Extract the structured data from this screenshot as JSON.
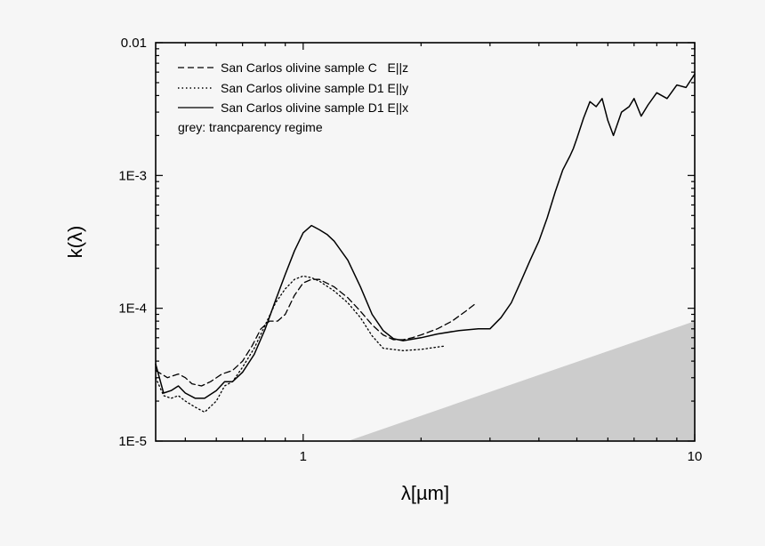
{
  "chart_data": {
    "type": "line",
    "xlabel": "λ[µm]",
    "ylabel": "k(λ)",
    "xscale": "log",
    "yscale": "log",
    "xlim": [
      0.42,
      10
    ],
    "ylim": [
      1e-05,
      0.01
    ],
    "x_ticks": [
      {
        "value": 1,
        "label": "1"
      },
      {
        "value": 10,
        "label": "10"
      }
    ],
    "y_ticks": [
      {
        "value": 1e-05,
        "label": "1E-5"
      },
      {
        "value": 0.0001,
        "label": "1E-4"
      },
      {
        "value": 0.001,
        "label": "1E-3"
      },
      {
        "value": 0.01,
        "label": "0.01"
      }
    ],
    "legend_position": "top-left",
    "series": [
      {
        "name": "San Carlos olivine sample C   E||z",
        "style": "dashed",
        "x": [
          0.42,
          0.45,
          0.48,
          0.5,
          0.52,
          0.55,
          0.58,
          0.62,
          0.66,
          0.7,
          0.74,
          0.78,
          0.82,
          0.86,
          0.9,
          0.95,
          1.0,
          1.05,
          1.1,
          1.2,
          1.3,
          1.4,
          1.5,
          1.6,
          1.7,
          1.8,
          1.9,
          2.0,
          2.2,
          2.4,
          2.6,
          2.75
        ],
        "y": [
          3.4e-05,
          3e-05,
          3.2e-05,
          3e-05,
          2.7e-05,
          2.6e-05,
          2.8e-05,
          3.2e-05,
          3.4e-05,
          4e-05,
          5.2e-05,
          7e-05,
          8e-05,
          8e-05,
          9e-05,
          0.000125,
          0.000155,
          0.000165,
          0.000165,
          0.000145,
          0.00012,
          9.5e-05,
          7.5e-05,
          6.3e-05,
          5.8e-05,
          5.8e-05,
          6e-05,
          6.3e-05,
          7e-05,
          8e-05,
          9.5e-05,
          0.000108
        ]
      },
      {
        "name": "San Carlos olivine sample D1 E||y",
        "style": "dotted",
        "x": [
          0.42,
          0.44,
          0.46,
          0.48,
          0.5,
          0.53,
          0.56,
          0.6,
          0.63,
          0.66,
          0.7,
          0.75,
          0.8,
          0.85,
          0.9,
          0.95,
          1.0,
          1.05,
          1.1,
          1.2,
          1.3,
          1.4,
          1.5,
          1.6,
          1.8,
          2.0,
          2.2,
          2.3
        ],
        "y": [
          3e-05,
          2.2e-05,
          2.1e-05,
          2.2e-05,
          2e-05,
          1.8e-05,
          1.65e-05,
          2e-05,
          2.6e-05,
          2.8e-05,
          3.6e-05,
          5e-05,
          7.5e-05,
          0.00011,
          0.00014,
          0.000165,
          0.000175,
          0.00017,
          0.00016,
          0.000135,
          0.00011,
          8.5e-05,
          6.2e-05,
          5e-05,
          4.8e-05,
          4.9e-05,
          5.1e-05,
          5.2e-05
        ]
      },
      {
        "name": "San Carlos olivine sample D1 E||x",
        "style": "solid",
        "x": [
          0.42,
          0.44,
          0.46,
          0.48,
          0.5,
          0.53,
          0.56,
          0.6,
          0.63,
          0.66,
          0.7,
          0.75,
          0.8,
          0.85,
          0.9,
          0.95,
          1.0,
          1.05,
          1.1,
          1.15,
          1.2,
          1.3,
          1.4,
          1.5,
          1.6,
          1.7,
          1.8,
          2.0,
          2.2,
          2.5,
          2.8,
          3.0,
          3.2,
          3.4,
          3.6,
          3.8,
          4.0,
          4.2,
          4.4,
          4.6,
          4.8,
          4.9,
          5.0,
          5.2,
          5.4,
          5.6,
          5.8,
          6.0,
          6.2,
          6.5,
          6.8,
          7.0,
          7.3,
          7.6,
          8.0,
          8.5,
          9.0,
          9.5,
          10.0
        ],
        "y": [
          3.8e-05,
          2.3e-05,
          2.4e-05,
          2.6e-05,
          2.3e-05,
          2.1e-05,
          2.1e-05,
          2.4e-05,
          2.8e-05,
          2.8e-05,
          3.3e-05,
          4.5e-05,
          7e-05,
          0.000115,
          0.00018,
          0.00027,
          0.00037,
          0.00042,
          0.00039,
          0.00036,
          0.00032,
          0.00023,
          0.000145,
          9e-05,
          6.8e-05,
          5.9e-05,
          5.7e-05,
          6e-05,
          6.4e-05,
          6.8e-05,
          7e-05,
          7e-05,
          8.5e-05,
          0.00011,
          0.00016,
          0.00023,
          0.00032,
          0.00048,
          0.00075,
          0.0011,
          0.0014,
          0.0016,
          0.0019,
          0.0027,
          0.0036,
          0.0033,
          0.0038,
          0.0026,
          0.002,
          0.003,
          0.0033,
          0.0038,
          0.0028,
          0.0034,
          0.0042,
          0.0038,
          0.0048,
          0.0046,
          0.0058
        ]
      }
    ],
    "annotation": "grey: trancparency regime",
    "shaded_region": {
      "color": "#cccccc",
      "x": [
        1.3,
        10.0
      ],
      "y": [
        1e-05,
        8e-05
      ]
    }
  },
  "colors": {
    "background": "#f6f6f6",
    "plot_background": "#f6f6f6",
    "line": "#000000",
    "shade": "#cccccc"
  }
}
